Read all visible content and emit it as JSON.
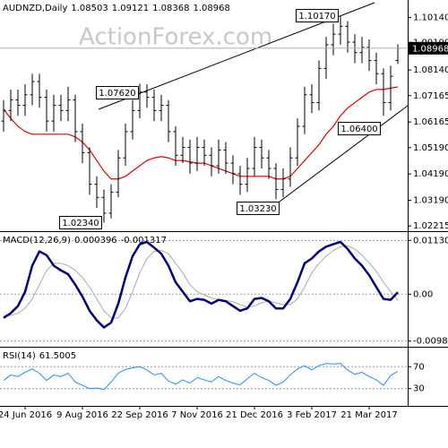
{
  "chart_data": [
    {
      "type": "ohlc",
      "title": "AUDNZD,Daily",
      "watermark": "ActionForex.com",
      "color": "#000000",
      "grid": false,
      "categories": [
        null,
        null,
        null,
        "24 Jun 2016",
        null,
        null,
        null,
        null,
        null,
        null,
        null,
        "9 Aug 2016",
        null,
        null,
        null,
        null,
        null,
        null,
        null,
        "22 Sep 2016",
        null,
        null,
        null,
        null,
        null,
        null,
        null,
        "7 Nov 2016",
        null,
        null,
        null,
        null,
        null,
        null,
        null,
        "21 Dec 2016",
        null,
        null,
        null,
        null,
        null,
        null,
        null,
        "3 Feb 2017",
        null,
        null,
        null,
        null,
        null,
        null,
        null,
        "21 Mar 2017",
        null,
        null,
        null,
        null
      ],
      "open": [
        1.062,
        1.066,
        1.07,
        1.068,
        1.072,
        1.077,
        1.071,
        1.062,
        1.068,
        1.066,
        1.07,
        1.058,
        1.05,
        1.038,
        1.033,
        1.027,
        1.035,
        1.048,
        1.058,
        1.066,
        1.073,
        1.071,
        1.066,
        1.068,
        1.058,
        1.049,
        1.052,
        1.046,
        1.052,
        1.049,
        1.045,
        1.051,
        1.046,
        1.042,
        1.038,
        1.044,
        1.052,
        1.048,
        1.044,
        1.036,
        1.04,
        1.048,
        1.06,
        1.072,
        1.069,
        1.082,
        1.091,
        1.095,
        1.098,
        1.092,
        1.088,
        1.09,
        1.085,
        1.08,
        1.069,
        1.08503
      ],
      "high": [
        1.07,
        1.074,
        1.074,
        1.076,
        1.08,
        1.08,
        1.074,
        1.072,
        1.072,
        1.075,
        1.072,
        1.061,
        1.052,
        1.041,
        1.036,
        1.038,
        1.051,
        1.061,
        1.07,
        1.0762,
        1.076,
        1.074,
        1.072,
        1.07,
        1.06,
        1.056,
        1.055,
        1.056,
        1.055,
        1.052,
        1.055,
        1.054,
        1.049,
        1.045,
        1.048,
        1.056,
        1.055,
        1.051,
        1.046,
        1.044,
        1.052,
        1.063,
        1.075,
        1.076,
        1.085,
        1.094,
        1.099,
        1.1017,
        1.1,
        1.095,
        1.094,
        1.093,
        1.088,
        1.082,
        1.083,
        1.09121
      ],
      "low": [
        1.058,
        1.062,
        1.064,
        1.064,
        1.068,
        1.067,
        1.058,
        1.058,
        1.062,
        1.062,
        1.054,
        1.046,
        1.034,
        1.029,
        1.0234,
        1.025,
        1.033,
        1.045,
        1.055,
        1.063,
        1.067,
        1.062,
        1.062,
        1.054,
        1.045,
        1.046,
        1.042,
        1.043,
        1.045,
        1.041,
        1.042,
        1.042,
        1.038,
        1.034,
        1.035,
        1.041,
        1.044,
        1.04,
        1.0323,
        1.033,
        1.037,
        1.045,
        1.057,
        1.065,
        1.066,
        1.078,
        1.087,
        1.091,
        1.088,
        1.084,
        1.084,
        1.081,
        1.076,
        1.064,
        1.066,
        1.08368
      ],
      "close": [
        1.066,
        1.07,
        1.068,
        1.072,
        1.077,
        1.071,
        1.062,
        1.068,
        1.066,
        1.07,
        1.058,
        1.05,
        1.038,
        1.033,
        1.027,
        1.035,
        1.048,
        1.058,
        1.066,
        1.073,
        1.071,
        1.066,
        1.068,
        1.058,
        1.049,
        1.052,
        1.046,
        1.052,
        1.049,
        1.045,
        1.051,
        1.046,
        1.042,
        1.038,
        1.044,
        1.052,
        1.048,
        1.044,
        1.036,
        1.04,
        1.048,
        1.06,
        1.072,
        1.069,
        1.082,
        1.091,
        1.095,
        1.098,
        1.092,
        1.088,
        1.09,
        1.085,
        1.08,
        1.069,
        1.079,
        1.08968
      ],
      "series": [
        {
          "color": "#e00000",
          "values": [
            1.0665,
            1.063,
            1.06,
            1.058,
            1.057,
            1.057,
            1.057,
            1.057,
            1.057,
            1.057,
            1.056,
            1.054,
            1.051,
            1.047,
            1.043,
            1.04,
            1.04,
            1.041,
            1.043,
            1.045,
            1.047,
            1.048,
            1.0485,
            1.048,
            1.047,
            1.047,
            1.0465,
            1.046,
            1.046,
            1.045,
            1.044,
            1.043,
            1.042,
            1.041,
            1.041,
            1.041,
            1.041,
            1.041,
            1.04,
            1.04,
            1.041,
            1.044,
            1.047,
            1.05,
            1.053,
            1.057,
            1.06,
            1.064,
            1.067,
            1.069,
            1.071,
            1.073,
            1.074,
            1.074,
            1.0745,
            1.075
          ]
        }
      ],
      "annotations": [
        "1.10170",
        "1.07620",
        "1.06400",
        "1.03230",
        "1.02340"
      ],
      "ylim": [
        1.0205,
        1.108
      ],
      "yticks": [
        {
          "value": 1.1014,
          "label": "1.10140"
        },
        {
          "value": 1.0919,
          "label": "1.09190"
        },
        {
          "value": 1.0814,
          "label": "1.08140"
        },
        {
          "value": 1.07165,
          "label": "1.07165"
        },
        {
          "value": 1.06165,
          "label": "1.06165"
        },
        {
          "value": 1.0519,
          "label": "1.05190"
        },
        {
          "value": 1.0419,
          "label": "1.04190"
        },
        {
          "value": 1.0319,
          "label": "1.03190"
        },
        {
          "value": 1.02215,
          "label": "1.02215"
        }
      ]
    },
    {
      "type": "line",
      "title": "MACD(12,26,9)",
      "grid": true,
      "series": [
        {
          "color": "#000080",
          "values": [
            -0.005,
            -0.004,
            -0.0025,
            0.0005,
            0.006,
            0.009,
            0.0082,
            0.006,
            0.005,
            0.0042,
            0.002,
            -0.0005,
            -0.0035,
            -0.0055,
            -0.007,
            -0.006,
            -0.002,
            0.0035,
            0.008,
            0.0105,
            0.011,
            0.0098,
            0.0085,
            0.006,
            0.0025,
            0.0005,
            -0.0015,
            -0.001,
            -0.0012,
            -0.002,
            -0.0012,
            -0.0015,
            -0.0025,
            -0.0035,
            -0.003,
            -0.001,
            -0.0008,
            -0.0015,
            -0.003,
            -0.003,
            -0.001,
            0.0025,
            0.0065,
            0.0075,
            0.009,
            0.01,
            0.0105,
            0.011,
            0.0095,
            0.0075,
            0.006,
            0.004,
            0.0015,
            -0.001,
            -0.0012,
            0.000396
          ]
        },
        {
          "color": "#a9a9a9",
          "values": [
            -0.0045,
            -0.0045,
            -0.004,
            -0.003,
            -0.001,
            0.002,
            0.005,
            0.0065,
            0.0065,
            0.006,
            0.005,
            0.0035,
            0.0015,
            -0.001,
            -0.0035,
            -0.005,
            -0.005,
            -0.003,
            0.0005,
            0.0045,
            0.0075,
            0.009,
            0.0092,
            0.0085,
            0.0065,
            0.0045,
            0.002,
            0.0005,
            -0.0002,
            -0.0008,
            -0.0012,
            -0.0013,
            -0.0016,
            -0.0022,
            -0.0027,
            -0.0025,
            -0.0018,
            -0.0015,
            -0.0018,
            -0.0022,
            -0.0022,
            -0.001,
            0.0015,
            0.0045,
            0.0065,
            0.008,
            0.0092,
            0.01,
            0.0102,
            0.0095,
            0.0082,
            0.0066,
            0.0048,
            0.0025,
            0.0005,
            -0.001317
          ]
        }
      ],
      "ylim": [
        -0.0105,
        0.0125
      ],
      "yticks": [
        0.011308,
        {
          "value": 0,
          "label": "0.00"
        },
        -0.00987
      ]
    },
    {
      "type": "line",
      "title": "RSI(14)",
      "grid": true,
      "series": [
        {
          "color": "#1e90ff",
          "values": [
            45,
            55,
            52,
            60,
            66,
            58,
            45,
            55,
            52,
            58,
            42,
            36,
            30,
            31,
            28,
            42,
            58,
            65,
            68,
            70,
            64,
            55,
            58,
            44,
            38,
            46,
            40,
            50,
            46,
            42,
            52,
            45,
            40,
            37,
            48,
            58,
            50,
            45,
            36,
            42,
            55,
            66,
            72,
            64,
            72,
            76,
            75,
            76,
            64,
            56,
            60,
            52,
            46,
            36,
            54,
            61.5005
          ]
        }
      ],
      "ylim": [
        0,
        100
      ],
      "yticks": [
        70,
        30
      ]
    }
  ]
}
